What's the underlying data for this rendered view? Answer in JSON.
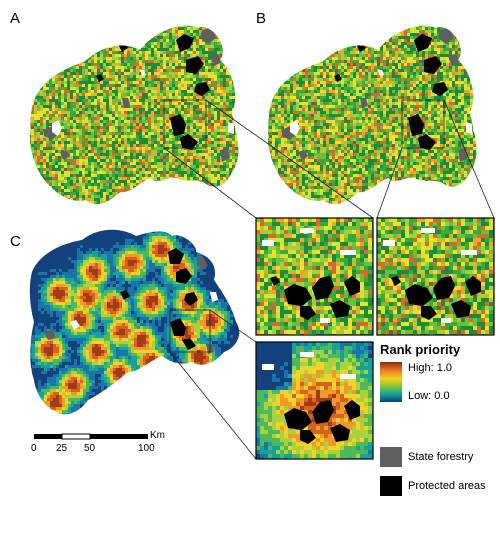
{
  "panels": {
    "a": "A",
    "b": "B",
    "c": "C"
  },
  "legend": {
    "title": "Rank priority",
    "high": "High: 1.0",
    "low": "Low: 0.0",
    "gradient_colors": [
      "#8b2a10",
      "#e67822",
      "#f5d21e",
      "#7cc242",
      "#13a59a",
      "#0a3f7a"
    ],
    "state_forestry": "State forestry",
    "state_forestry_color": "#5f5f5f",
    "protected_areas": "Protected areas",
    "protected_areas_color": "#000000"
  },
  "scale_bar": {
    "unit": "Km",
    "ticks": [
      "0",
      "25",
      "50",
      "100"
    ]
  },
  "palettes": {
    "ab": [
      "#1c8c3c",
      "#3aa83a",
      "#6cbf3a",
      "#9ed13c",
      "#d6e236",
      "#f3e028",
      "#f0a42a",
      "#d9682a"
    ],
    "c": [
      "#12417e",
      "#1b73a8",
      "#17a19c",
      "#4eb95a",
      "#a9d23c",
      "#f3d22a",
      "#ef9a2a",
      "#d5621f",
      "#a33a16",
      "#6e2a12"
    ]
  }
}
